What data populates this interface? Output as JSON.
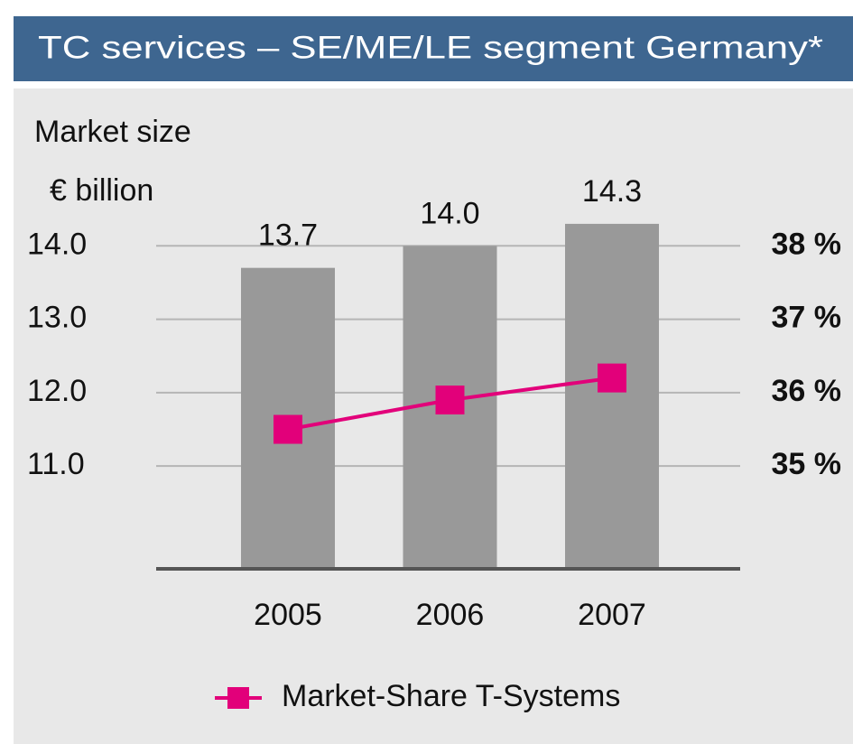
{
  "chart_data": {
    "type": "bar",
    "title": "TC services – SE/ME/LE segment Germany*",
    "y_label": "Market size",
    "y_unit": "€ billion",
    "categories": [
      "2005",
      "2006",
      "2007"
    ],
    "values": [
      13.7,
      14.0,
      14.3
    ],
    "value_labels": [
      "13.7",
      "14.0",
      "14.3"
    ],
    "color": "#999999",
    "ylim": [
      9.6,
      14.6
    ],
    "yticks": [
      {
        "value": 11,
        "label": "11.0"
      },
      {
        "value": 12,
        "label": "12.0"
      },
      {
        "value": 13,
        "label": "13.0"
      },
      {
        "value": 14,
        "label": "14.0"
      }
    ],
    "y2lim": [
      33.6,
      38.6
    ],
    "y2ticks": [
      {
        "value": 35,
        "label": "35 %"
      },
      {
        "value": 36,
        "label": "36 %"
      },
      {
        "value": 37,
        "label": "37 %"
      },
      {
        "value": 38,
        "label": "38 %"
      }
    ],
    "grid": true,
    "series": [
      {
        "name": "Market-Share T-Systems",
        "color": "#e2007a",
        "values": [
          35.5,
          35.9,
          36.2
        ],
        "axis": "y2"
      }
    ]
  }
}
